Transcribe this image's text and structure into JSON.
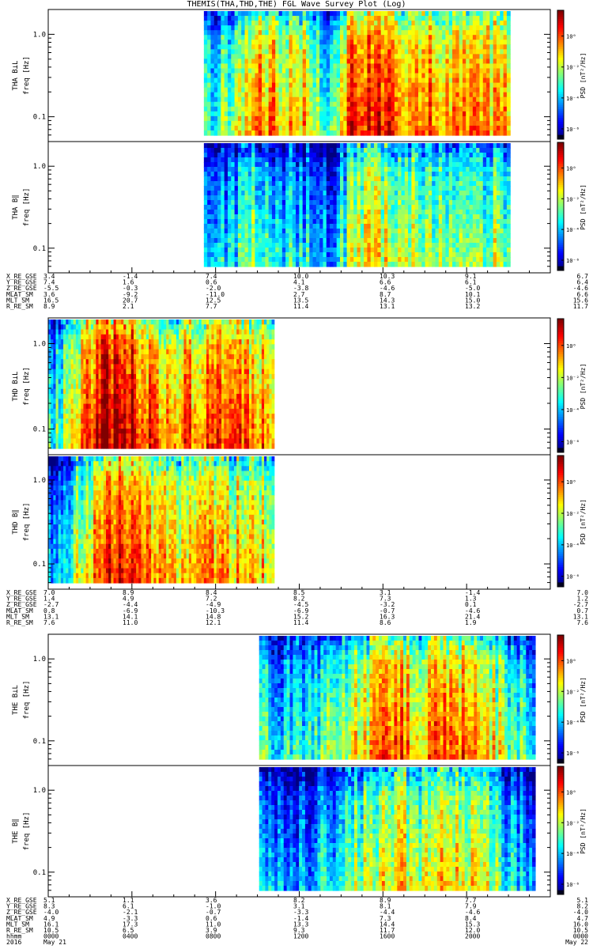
{
  "title": "THEMIS(THA,THD,THE) FGL Wave Survey Plot (Log)",
  "chart_data": [
    {
      "type": "heatmap",
      "panel": "THA B_L",
      "ylabel": "THA B⊥L",
      "yunit": "freq [Hz]",
      "yscale": "log",
      "ylim": [
        0.05,
        2.0
      ],
      "yticks": [
        "1.0",
        "0.1"
      ],
      "colorbar_label": "PSD [nT²/Hz]",
      "colorbar_ticks": [
        "10⁰",
        "10⁻²",
        "10⁻⁴",
        "10⁻⁶"
      ],
      "data_extent_x": [
        0.31,
        0.92
      ],
      "levels": [
        0.35,
        0.45,
        0.7,
        0.6,
        0.62,
        0.3,
        0.85,
        0.78,
        0.7,
        0.68,
        0.65,
        0.62,
        0.6
      ]
    },
    {
      "type": "heatmap",
      "panel": "THA B_par",
      "ylabel": "THA B∥",
      "yunit": "freq [Hz]",
      "yscale": "log",
      "ylim": [
        0.05,
        2.0
      ],
      "yticks": [
        "1.0",
        "0.1"
      ],
      "colorbar_label": "PSD [nT²/Hz]",
      "colorbar_ticks": [
        "10⁰",
        "10⁻²",
        "10⁻⁴",
        "10⁻⁶"
      ],
      "data_extent_x": [
        0.31,
        0.92
      ],
      "levels": [
        0.2,
        0.25,
        0.4,
        0.28,
        0.3,
        0.2,
        0.55,
        0.5,
        0.5,
        0.48,
        0.47,
        0.46,
        0.45
      ]
    },
    {
      "type": "heatmap",
      "panel": "THD B_L",
      "ylabel": "THD B⊥L",
      "yunit": "freq [Hz]",
      "yscale": "log",
      "ylim": [
        0.05,
        2.0
      ],
      "yticks": [
        "1.0",
        "0.1"
      ],
      "colorbar_label": "PSD [nT²/Hz]",
      "colorbar_ticks": [
        "10⁰",
        "10⁻²",
        "10⁻⁴",
        "10⁻⁶"
      ],
      "data_extent_x": [
        0.0,
        0.45
      ],
      "levels": [
        0.3,
        0.5,
        0.7,
        0.85,
        0.92,
        0.75,
        0.7,
        0.68,
        0.7,
        0.72,
        0.7,
        0.68,
        0.66
      ]
    },
    {
      "type": "heatmap",
      "panel": "THD B_par",
      "ylabel": "THD B∥",
      "yunit": "freq [Hz]",
      "yscale": "log",
      "ylim": [
        0.05,
        2.0
      ],
      "yticks": [
        "1.0",
        "0.1"
      ],
      "colorbar_label": "PSD [nT²/Hz]",
      "colorbar_ticks": [
        "10⁰",
        "10⁻²",
        "10⁻⁴",
        "10⁻⁶"
      ],
      "data_extent_x": [
        0.0,
        0.45
      ],
      "levels": [
        0.2,
        0.35,
        0.55,
        0.75,
        0.85,
        0.65,
        0.6,
        0.58,
        0.6,
        0.62,
        0.6,
        0.58,
        0.56
      ]
    },
    {
      "type": "heatmap",
      "panel": "THE B_L",
      "ylabel": "THE B⊥L",
      "yunit": "freq [Hz]",
      "yscale": "log",
      "ylim": [
        0.05,
        2.0
      ],
      "yticks": [
        "1.0",
        "0.1"
      ],
      "colorbar_label": "PSD [nT²/Hz]",
      "colorbar_ticks": [
        "10⁰",
        "10⁻²",
        "10⁻⁴",
        "10⁻⁶"
      ],
      "data_extent_x": [
        0.42,
        0.97
      ],
      "levels": [
        0.3,
        0.32,
        0.35,
        0.4,
        0.5,
        0.62,
        0.7,
        0.6,
        0.72,
        0.68,
        0.6,
        0.4,
        0.3
      ]
    },
    {
      "type": "heatmap",
      "panel": "THE B_par",
      "ylabel": "THE B∥",
      "yunit": "freq [Hz]",
      "yscale": "log",
      "ylim": [
        0.05,
        2.0
      ],
      "yticks": [
        "1.0",
        "0.1"
      ],
      "colorbar_label": "PSD [nT²/Hz]",
      "colorbar_ticks": [
        "10⁰",
        "10⁻²",
        "10⁻⁴",
        "10⁻⁶"
      ],
      "data_extent_x": [
        0.42,
        0.97
      ],
      "levels": [
        0.2,
        0.2,
        0.22,
        0.28,
        0.4,
        0.5,
        0.55,
        0.5,
        0.58,
        0.52,
        0.45,
        0.28,
        0.2
      ]
    }
  ],
  "ephemeris": [
    {
      "rows": [
        {
          "label": "X_RE_GSE",
          "values": [
            "3.4",
            "-1.4",
            "7.4",
            "10.0",
            "10.3",
            "9.1",
            "6.7"
          ]
        },
        {
          "label": "Y_RE_GSE",
          "values": [
            "7.4",
            "1.6",
            "0.6",
            "4.1",
            "6.6",
            "6.1",
            "6.4"
          ]
        },
        {
          "label": "Z_RE_GSE",
          "values": [
            "-5.5",
            "-0.3",
            "-2.0",
            "-3.8",
            "-4.6",
            "-5.0",
            "-4.6"
          ]
        },
        {
          "label": "MLAT_SM",
          "values": [
            "3.6",
            "-9.2",
            "-11.0",
            "2.7",
            "8.7",
            "10.1",
            "6.6"
          ]
        },
        {
          "label": "MLT_SM",
          "values": [
            "16.5",
            "20.7",
            "12.5",
            "13.5",
            "14.3",
            "15.0",
            "15.6"
          ]
        },
        {
          "label": "R_RE_SM",
          "values": [
            "8.9",
            "2.1",
            "7.7",
            "11.4",
            "13.1",
            "13.2",
            "11.7"
          ]
        }
      ]
    },
    {
      "rows": [
        {
          "label": "X_RE_GSE",
          "values": [
            "7.0",
            "8.9",
            "8.4",
            "8.5",
            "3.1",
            "-1.4",
            "7.0"
          ]
        },
        {
          "label": "Y_RE_GSE",
          "values": [
            "1.4",
            "4.9",
            "7.2",
            "8.2",
            "7.3",
            "1.3",
            "1.2"
          ]
        },
        {
          "label": "Z_RE_GSE",
          "values": [
            "-2.7",
            "-4.4",
            "-4.9",
            "-4.5",
            "-3.2",
            "0.1",
            "-2.7"
          ]
        },
        {
          "label": "MLAT_SM",
          "values": [
            "0.8",
            "-6.9",
            "-10.3",
            "-6.9",
            "-0.7",
            "-4.6",
            "0.7"
          ]
        },
        {
          "label": "MLT_SM",
          "values": [
            "13.1",
            "14.1",
            "14.8",
            "15.2",
            "16.3",
            "21.4",
            "13.1"
          ]
        },
        {
          "label": "R_RE_SM",
          "values": [
            "7.6",
            "11.0",
            "12.1",
            "11.4",
            "8.6",
            "1.9",
            "7.6"
          ]
        }
      ]
    },
    {
      "rows": [
        {
          "label": "X_RE_GSE",
          "values": [
            "5.1",
            "1.1",
            "3.6",
            "8.2",
            "8.9",
            "7.7",
            "5.1"
          ]
        },
        {
          "label": "Y_RE_GSE",
          "values": [
            "8.3",
            "6.1",
            "-1.0",
            "3.1",
            "8.1",
            "7.9",
            "8.2"
          ]
        },
        {
          "label": "Z_RE_GSE",
          "values": [
            "-4.0",
            "-2.1",
            "-0.7",
            "-3.3",
            "-4.4",
            "-4.6",
            "-4.0"
          ]
        },
        {
          "label": "MLAT_SM",
          "values": [
            "4.9",
            "-3.3",
            "0.6",
            "-1.4",
            "7.3",
            "8.4",
            "4.7"
          ]
        },
        {
          "label": "MLT_SM",
          "values": [
            "16.1",
            "17.3",
            "11.0",
            "13.3",
            "14.4",
            "15.3",
            "16.0"
          ]
        },
        {
          "label": "R_RE_SM",
          "values": [
            "10.5",
            "6.5",
            "3.9",
            "9.3",
            "11.7",
            "12.0",
            "10.5"
          ]
        },
        {
          "label": "hhmm",
          "values": [
            "0000",
            "0400",
            "0800",
            "1200",
            "1600",
            "2000",
            "0000"
          ]
        },
        {
          "label": "2016",
          "values": [
            "May 21",
            "",
            "",
            "",
            "",
            "",
            "May 22"
          ]
        }
      ]
    }
  ]
}
